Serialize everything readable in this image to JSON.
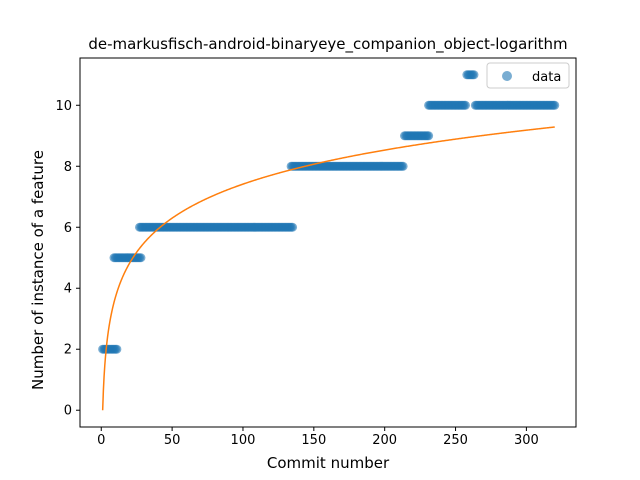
{
  "chart_data": {
    "type": "scatter",
    "title": "de-markusfisch-android-binaryeye_companion_object-logarithm",
    "xlabel": "Commit number",
    "ylabel": "Number of instance of a feature",
    "xlim": [
      -15,
      335
    ],
    "ylim": [
      -0.55,
      11.55
    ],
    "xticks": [
      0,
      50,
      100,
      150,
      200,
      250,
      300
    ],
    "yticks": [
      0,
      2,
      4,
      6,
      8,
      10
    ],
    "grid": false,
    "legend": {
      "position": "top-right",
      "entries": [
        "data"
      ]
    },
    "colors": {
      "scatter": "#1f77b4",
      "fit": "#ff7f0e"
    },
    "series": [
      {
        "name": "data",
        "kind": "scatter",
        "step_ranges": [
          {
            "x_start": 1,
            "x_end": 11,
            "y": 2
          },
          {
            "x_start": 9,
            "x_end": 28,
            "y": 5
          },
          {
            "x_start": 27,
            "x_end": 135,
            "y": 6
          },
          {
            "x_start": 134,
            "x_end": 213,
            "y": 8
          },
          {
            "x_start": 214,
            "x_end": 231,
            "y": 9
          },
          {
            "x_start": 231,
            "x_end": 257,
            "y": 10
          },
          {
            "x_start": 258,
            "x_end": 263,
            "y": 11
          },
          {
            "x_start": 264,
            "x_end": 320,
            "y": 10
          }
        ]
      },
      {
        "kind": "line",
        "fit": "logarithmic",
        "equation": {
          "a": 1.61,
          "b": 0,
          "form": "y = a*ln(x) + b"
        },
        "x_range": [
          1,
          320
        ]
      }
    ]
  }
}
